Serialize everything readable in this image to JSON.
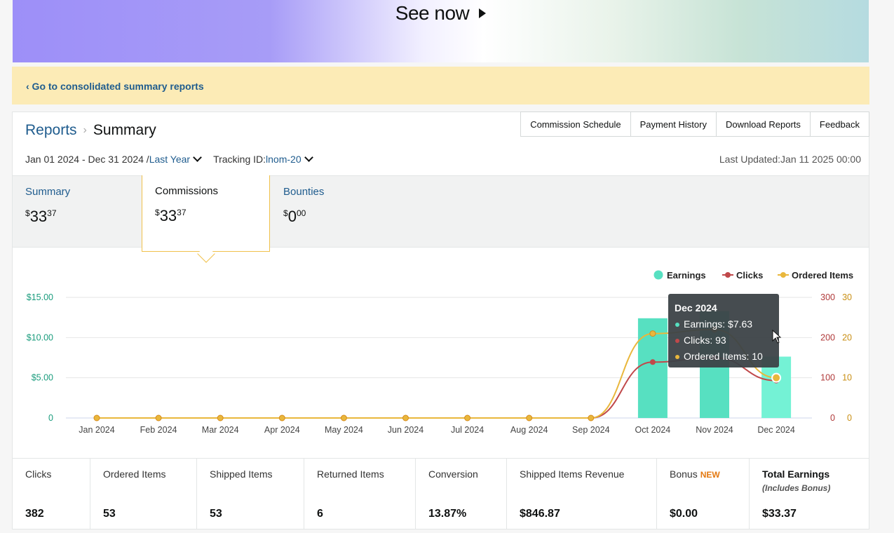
{
  "banner": {
    "cta_label": "See now"
  },
  "notice": {
    "link_label": "‹ Go to consolidated summary reports"
  },
  "breadcrumb": {
    "root": "Reports",
    "separator": "›",
    "current": "Summary"
  },
  "top_tabs": [
    "Commission Schedule",
    "Payment History",
    "Download Reports",
    "Feedback"
  ],
  "filters": {
    "date_range": "Jan 01 2024 - Dec 31 2024 /",
    "period": "Last Year",
    "tracking_label": "Tracking ID:",
    "tracking_id": "lnom-20"
  },
  "last_updated": "Last Updated:Jan 11 2025 00:00",
  "summary_tabs": [
    {
      "label": "Summary",
      "dollars": "33",
      "cents": "37",
      "currency": "$",
      "active": false
    },
    {
      "label": "Commissions",
      "dollars": "33",
      "cents": "37",
      "currency": "$",
      "active": true
    },
    {
      "label": "Bounties",
      "dollars": "0",
      "cents": "00",
      "currency": "$",
      "active": false
    }
  ],
  "chart_data": {
    "type": "bar+line",
    "categories": [
      "Jan 2024",
      "Feb 2024",
      "Mar 2024",
      "Apr 2024",
      "May 2024",
      "Jun 2024",
      "Jul 2024",
      "Aug 2024",
      "Sep 2024",
      "Oct 2024",
      "Nov 2024",
      "Dec 2024"
    ],
    "legend_position": "top-right",
    "grid": true,
    "series": [
      {
        "name": "Earnings",
        "type": "bar",
        "axis": "left",
        "color": "#57e0c1",
        "values": [
          0,
          0,
          0,
          0,
          0,
          0,
          0,
          0,
          0,
          12.4,
          13.3,
          7.63
        ]
      },
      {
        "name": "Clicks",
        "type": "line",
        "axis": "right1",
        "color": "#c0484a",
        "values": [
          0,
          0,
          0,
          0,
          0,
          0,
          0,
          0,
          0,
          139,
          150,
          93
        ]
      },
      {
        "name": "Ordered Items",
        "type": "line",
        "axis": "right2",
        "color": "#e9b73c",
        "values": [
          0,
          0,
          0,
          0,
          0,
          0,
          0,
          0,
          0,
          21,
          22,
          10
        ]
      }
    ],
    "axes": {
      "left": {
        "ticks": [
          "0",
          "$5.00",
          "$10.00",
          "$15.00"
        ],
        "range": [
          0,
          15
        ],
        "color": "#1a9c7d"
      },
      "right1": {
        "ticks": [
          "0",
          "100",
          "200",
          "300"
        ],
        "range": [
          0,
          300
        ],
        "color": "#b03a3a"
      },
      "right2": {
        "ticks": [
          "0",
          "10",
          "20",
          "30"
        ],
        "range": [
          0,
          30
        ],
        "color": "#c98f14"
      }
    },
    "tooltip": {
      "category": "Dec 2024",
      "lines": [
        "Earnings: $7.63",
        "Clicks: 93",
        "Ordered Items: 10"
      ]
    }
  },
  "stats": [
    {
      "label": "Clicks",
      "value": "382"
    },
    {
      "label": "Ordered Items",
      "value": "53"
    },
    {
      "label": "Shipped Items",
      "value": "53"
    },
    {
      "label": "Returned Items",
      "value": "6"
    },
    {
      "label": "Conversion",
      "value": "13.87%"
    },
    {
      "label": "Shipped Items Revenue",
      "value": "$846.87"
    },
    {
      "label": "Bonus",
      "badge": "NEW",
      "value": "$0.00"
    },
    {
      "label": "Total Earnings",
      "sublabel": "(Includes Bonus)",
      "value": "$33.37"
    }
  ]
}
